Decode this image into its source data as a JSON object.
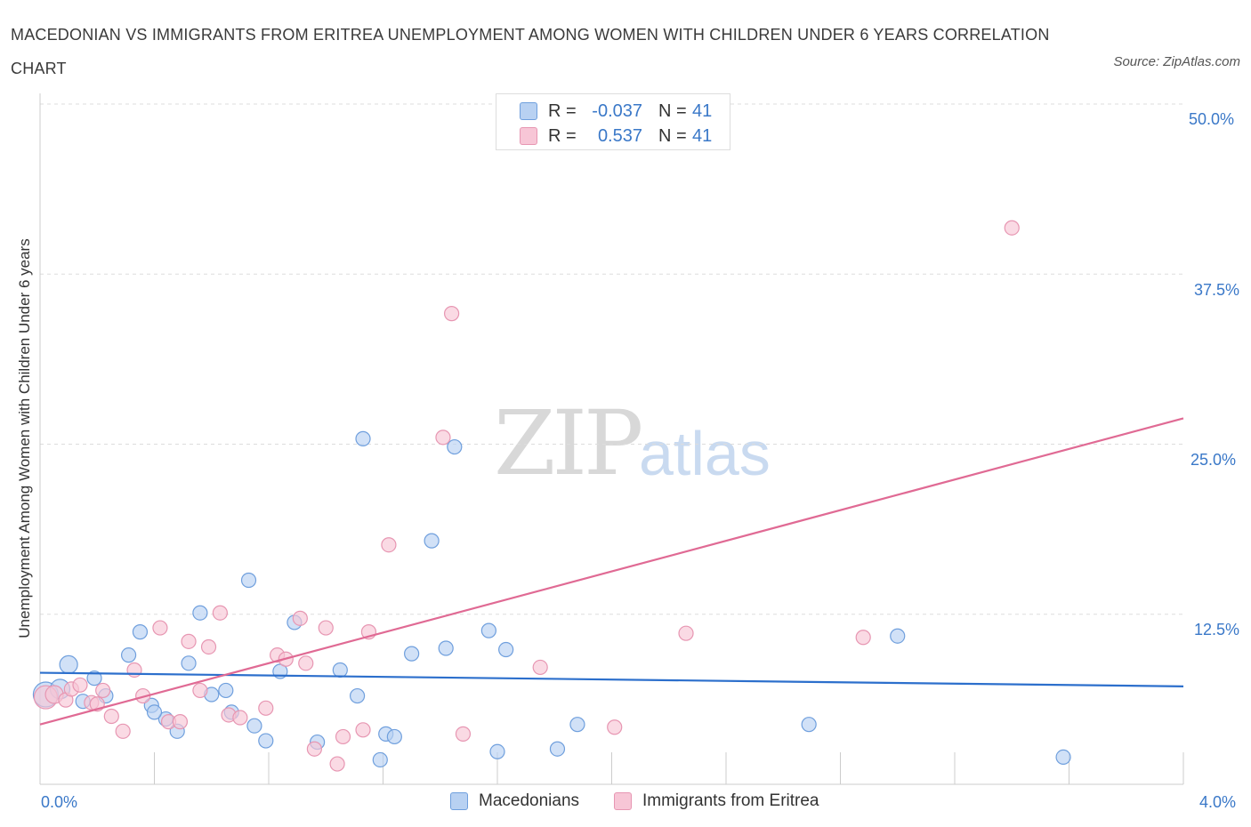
{
  "title": "MACEDONIAN VS IMMIGRANTS FROM ERITREA UNEMPLOYMENT AMONG WOMEN WITH CHILDREN UNDER 6 YEARS CORRELATION CHART",
  "source": "Source: ZipAtlas.com",
  "watermark": {
    "zip": "ZIP",
    "atlas": "atlas"
  },
  "legend": {
    "rows": [
      {
        "r_label": "R =",
        "r_value": "-0.037",
        "n_label": "N =",
        "n_value": "41"
      },
      {
        "r_label": "R =",
        "r_value": "0.537",
        "n_label": "N =",
        "n_value": "41"
      }
    ]
  },
  "colors": {
    "macedonians_fill": "#b8d1f2",
    "macedonians_stroke": "#6f9fdd",
    "macedonians_line": "#2c6fcc",
    "eritrea_fill": "#f7c6d6",
    "eritrea_stroke": "#e796b2",
    "eritrea_line": "#e06a94",
    "tick_label": "#3a78c8",
    "grid": "#dddddd"
  },
  "chart_data": {
    "type": "scatter",
    "title": "MACEDONIAN VS IMMIGRANTS FROM ERITREA UNEMPLOYMENT AMONG WOMEN WITH CHILDREN UNDER 6 YEARS CORRELATION CHART",
    "xlabel": "",
    "ylabel": "Unemployment Among Women with Children Under 6 years",
    "xlim": [
      0,
      4.0
    ],
    "ylim": [
      0,
      50
    ],
    "x_tick_labels": [
      "0.0%",
      "4.0%"
    ],
    "y_tick_labels": [
      "12.5%",
      "25.0%",
      "37.5%",
      "50.0%"
    ],
    "y_ticks": [
      12.5,
      25.0,
      37.5,
      50.0
    ],
    "grid": "horizontal dashed",
    "legend_position": "bottom",
    "series": [
      {
        "name": "Macedonians",
        "color": "#b8d1f2",
        "trend": {
          "x": [
            0,
            4.0
          ],
          "y": [
            8.2,
            7.2
          ]
        },
        "points": [
          {
            "x": 0.02,
            "y": 6.6,
            "size": 14
          },
          {
            "x": 0.07,
            "y": 7.0,
            "size": 11
          },
          {
            "x": 0.1,
            "y": 8.8,
            "size": 10
          },
          {
            "x": 0.15,
            "y": 6.1,
            "size": 8
          },
          {
            "x": 0.19,
            "y": 7.8,
            "size": 8
          },
          {
            "x": 0.23,
            "y": 6.5,
            "size": 8
          },
          {
            "x": 0.31,
            "y": 9.5,
            "size": 8
          },
          {
            "x": 0.35,
            "y": 11.2,
            "size": 8
          },
          {
            "x": 0.39,
            "y": 5.8,
            "size": 8
          },
          {
            "x": 0.44,
            "y": 4.8,
            "size": 8
          },
          {
            "x": 0.48,
            "y": 3.9,
            "size": 8
          },
          {
            "x": 0.52,
            "y": 8.9,
            "size": 8
          },
          {
            "x": 0.56,
            "y": 12.6,
            "size": 8
          },
          {
            "x": 0.6,
            "y": 6.6,
            "size": 8
          },
          {
            "x": 0.65,
            "y": 6.9,
            "size": 8
          },
          {
            "x": 0.67,
            "y": 5.3,
            "size": 8
          },
          {
            "x": 0.73,
            "y": 15.0,
            "size": 8
          },
          {
            "x": 0.75,
            "y": 4.3,
            "size": 8
          },
          {
            "x": 0.79,
            "y": 3.2,
            "size": 8
          },
          {
            "x": 0.84,
            "y": 8.3,
            "size": 8
          },
          {
            "x": 0.89,
            "y": 11.9,
            "size": 8
          },
          {
            "x": 0.97,
            "y": 3.1,
            "size": 8
          },
          {
            "x": 1.05,
            "y": 8.4,
            "size": 8
          },
          {
            "x": 1.11,
            "y": 6.5,
            "size": 8
          },
          {
            "x": 1.13,
            "y": 25.4,
            "size": 8
          },
          {
            "x": 1.19,
            "y": 1.8,
            "size": 8
          },
          {
            "x": 1.21,
            "y": 3.7,
            "size": 8
          },
          {
            "x": 1.24,
            "y": 3.5,
            "size": 8
          },
          {
            "x": 1.3,
            "y": 9.6,
            "size": 8
          },
          {
            "x": 1.37,
            "y": 17.9,
            "size": 8
          },
          {
            "x": 1.42,
            "y": 10.0,
            "size": 8
          },
          {
            "x": 1.45,
            "y": 24.8,
            "size": 8
          },
          {
            "x": 1.57,
            "y": 11.3,
            "size": 8
          },
          {
            "x": 1.6,
            "y": 2.4,
            "size": 8
          },
          {
            "x": 1.63,
            "y": 9.9,
            "size": 8
          },
          {
            "x": 1.81,
            "y": 2.6,
            "size": 8
          },
          {
            "x": 1.88,
            "y": 4.4,
            "size": 8
          },
          {
            "x": 2.69,
            "y": 4.4,
            "size": 8
          },
          {
            "x": 3.0,
            "y": 10.9,
            "size": 8
          },
          {
            "x": 3.58,
            "y": 2.0,
            "size": 8
          },
          {
            "x": 0.4,
            "y": 5.3,
            "size": 8
          }
        ]
      },
      {
        "name": "Immigrants from Eritrea",
        "color": "#f7c6d6",
        "trend": {
          "x": [
            0,
            4.0
          ],
          "y": [
            4.4,
            26.9
          ]
        },
        "points": [
          {
            "x": 0.02,
            "y": 6.4,
            "size": 13
          },
          {
            "x": 0.05,
            "y": 6.6,
            "size": 10
          },
          {
            "x": 0.09,
            "y": 6.2,
            "size": 8
          },
          {
            "x": 0.11,
            "y": 7.0,
            "size": 8
          },
          {
            "x": 0.14,
            "y": 7.3,
            "size": 8
          },
          {
            "x": 0.18,
            "y": 6.0,
            "size": 8
          },
          {
            "x": 0.22,
            "y": 6.9,
            "size": 8
          },
          {
            "x": 0.25,
            "y": 5.0,
            "size": 8
          },
          {
            "x": 0.29,
            "y": 3.9,
            "size": 8
          },
          {
            "x": 0.33,
            "y": 8.4,
            "size": 8
          },
          {
            "x": 0.36,
            "y": 6.5,
            "size": 8
          },
          {
            "x": 0.42,
            "y": 11.5,
            "size": 8
          },
          {
            "x": 0.45,
            "y": 4.6,
            "size": 8
          },
          {
            "x": 0.49,
            "y": 4.6,
            "size": 8
          },
          {
            "x": 0.52,
            "y": 10.5,
            "size": 8
          },
          {
            "x": 0.56,
            "y": 6.9,
            "size": 8
          },
          {
            "x": 0.59,
            "y": 10.1,
            "size": 8
          },
          {
            "x": 0.63,
            "y": 12.6,
            "size": 8
          },
          {
            "x": 0.66,
            "y": 5.1,
            "size": 8
          },
          {
            "x": 0.7,
            "y": 4.9,
            "size": 8
          },
          {
            "x": 0.79,
            "y": 5.6,
            "size": 8
          },
          {
            "x": 0.83,
            "y": 9.5,
            "size": 8
          },
          {
            "x": 0.86,
            "y": 9.2,
            "size": 8
          },
          {
            "x": 0.91,
            "y": 12.2,
            "size": 8
          },
          {
            "x": 0.93,
            "y": 8.9,
            "size": 8
          },
          {
            "x": 0.96,
            "y": 2.6,
            "size": 8
          },
          {
            "x": 1.0,
            "y": 11.5,
            "size": 8
          },
          {
            "x": 1.04,
            "y": 1.5,
            "size": 8
          },
          {
            "x": 1.06,
            "y": 3.5,
            "size": 8
          },
          {
            "x": 1.15,
            "y": 11.2,
            "size": 8
          },
          {
            "x": 1.13,
            "y": 4.0,
            "size": 8
          },
          {
            "x": 1.22,
            "y": 17.6,
            "size": 8
          },
          {
            "x": 1.41,
            "y": 25.5,
            "size": 8
          },
          {
            "x": 1.44,
            "y": 34.6,
            "size": 8
          },
          {
            "x": 1.48,
            "y": 3.7,
            "size": 8
          },
          {
            "x": 1.75,
            "y": 8.6,
            "size": 8
          },
          {
            "x": 2.01,
            "y": 4.2,
            "size": 8
          },
          {
            "x": 2.26,
            "y": 11.1,
            "size": 8
          },
          {
            "x": 2.88,
            "y": 10.8,
            "size": 8
          },
          {
            "x": 3.4,
            "y": 40.9,
            "size": 8
          },
          {
            "x": 0.2,
            "y": 5.9,
            "size": 8
          }
        ]
      }
    ]
  }
}
